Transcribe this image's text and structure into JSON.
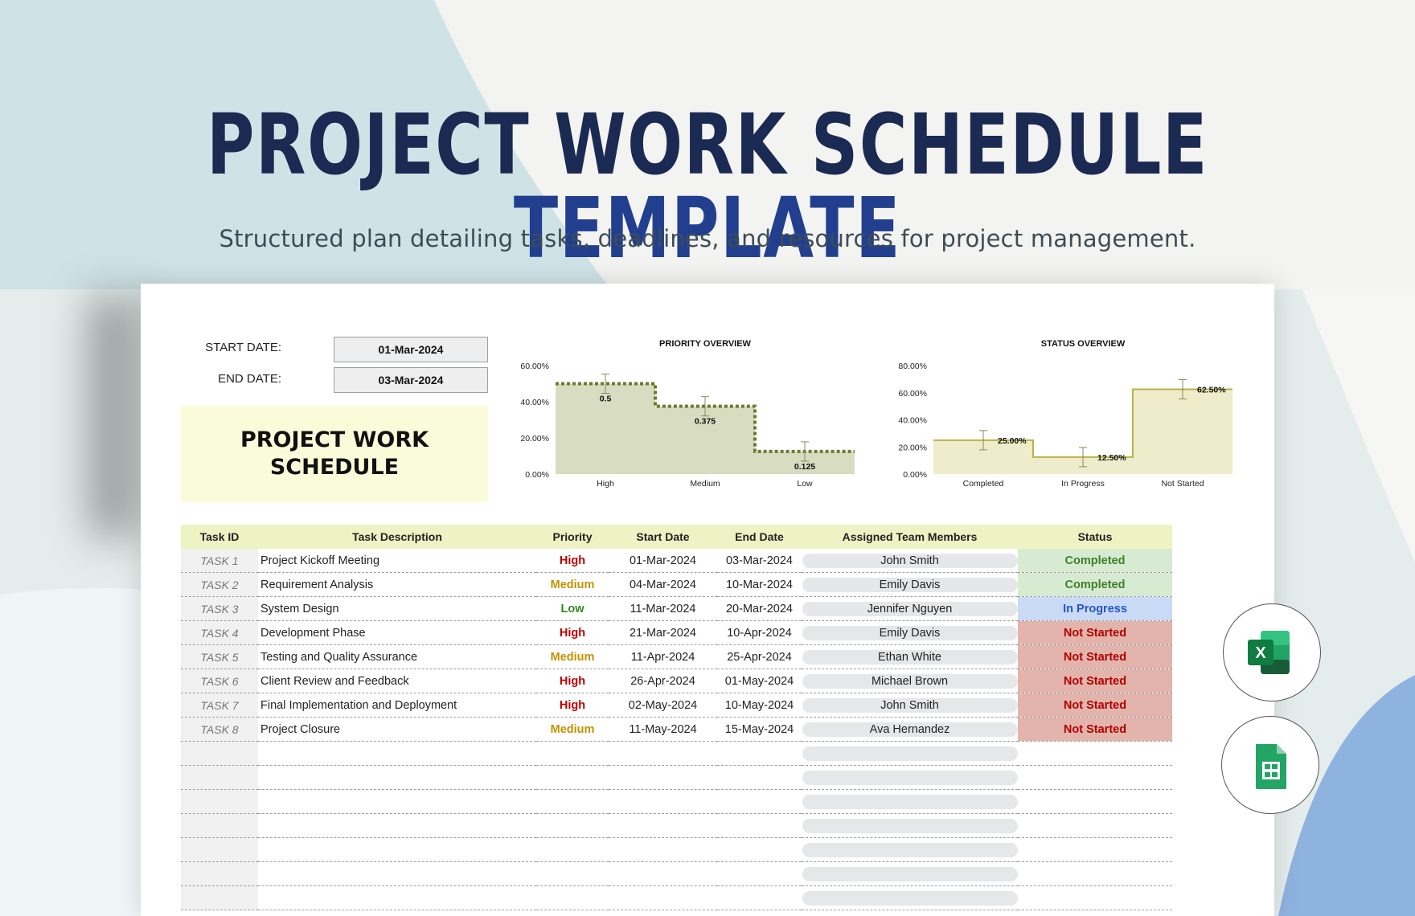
{
  "hero": {
    "title_main": "PROJECT WORK SCHEDULE",
    "title_accent": "TEMPLATE",
    "subtitle": "Structured plan detailing tasks, deadlines, and resources for project management."
  },
  "sheet": {
    "start_label": "START DATE:",
    "start_value": "01-Mar-2024",
    "end_label": "END DATE:",
    "end_value": "03-Mar-2024",
    "title": "PROJECT WORK SCHEDULE"
  },
  "chart_data": [
    {
      "type": "area",
      "title": "PRIORITY OVERVIEW",
      "categories": [
        "High",
        "Medium",
        "Low"
      ],
      "values": [
        0.5,
        0.375,
        0.125
      ],
      "data_labels": [
        "0.5",
        "0.375",
        "0.125"
      ],
      "ylim": [
        0,
        0.6
      ],
      "yticks": [
        "0.00%",
        "20.00%",
        "40.00%",
        "60.00%"
      ],
      "error_bars": true,
      "grid": false,
      "colors": {
        "fill": "#d8dcc1",
        "line": "#6b7a2f"
      }
    },
    {
      "type": "area",
      "title": "STATUS OVERVIEW",
      "categories": [
        "Completed",
        "In Progress",
        "Not Started"
      ],
      "values": [
        0.25,
        0.125,
        0.625
      ],
      "data_labels": [
        "25.00%",
        "12.50%",
        "62.50%"
      ],
      "ylim": [
        0,
        0.8
      ],
      "yticks": [
        "0.00%",
        "20.00%",
        "40.00%",
        "60.00%",
        "80.00%"
      ],
      "error_bars": true,
      "grid": false,
      "colors": {
        "fill": "#efeccb",
        "line": "#b9b24a"
      }
    }
  ],
  "table": {
    "headers": [
      "Task ID",
      "Task Description",
      "Priority",
      "Start Date",
      "End Date",
      "Assigned Team Members",
      "Status"
    ],
    "rows": [
      {
        "id": "TASK 1",
        "desc": "Project Kickoff Meeting",
        "priority": "High",
        "start": "01-Mar-2024",
        "end": "03-Mar-2024",
        "member": "John Smith",
        "status": "Completed"
      },
      {
        "id": "TASK 2",
        "desc": "Requirement Analysis",
        "priority": "Medium",
        "start": "04-Mar-2024",
        "end": "10-Mar-2024",
        "member": "Emily Davis",
        "status": "Completed"
      },
      {
        "id": "TASK 3",
        "desc": "System Design",
        "priority": "Low",
        "start": "11-Mar-2024",
        "end": "20-Mar-2024",
        "member": "Jennifer Nguyen",
        "status": "In Progress"
      },
      {
        "id": "TASK 4",
        "desc": "Development Phase",
        "priority": "High",
        "start": "21-Mar-2024",
        "end": "10-Apr-2024",
        "member": "Emily Davis",
        "status": "Not Started"
      },
      {
        "id": "TASK 5",
        "desc": "Testing and Quality Assurance",
        "priority": "Medium",
        "start": "11-Apr-2024",
        "end": "25-Apr-2024",
        "member": "Ethan White",
        "status": "Not Started"
      },
      {
        "id": "TASK 6",
        "desc": "Client Review and Feedback",
        "priority": "High",
        "start": "26-Apr-2024",
        "end": "01-May-2024",
        "member": "Michael Brown",
        "status": "Not Started"
      },
      {
        "id": "TASK 7",
        "desc": "Final Implementation and Deployment",
        "priority": "High",
        "start": "02-May-2024",
        "end": "10-May-2024",
        "member": "John Smith",
        "status": "Not Started"
      },
      {
        "id": "TASK 8",
        "desc": "Project Closure",
        "priority": "Medium",
        "start": "11-May-2024",
        "end": "15-May-2024",
        "member": "Ava Hernandez",
        "status": "Not Started"
      }
    ],
    "empty_rows": 7
  },
  "apps": [
    {
      "icon": "excel-icon",
      "letter": "X",
      "color": "#1e7145"
    },
    {
      "icon": "google-sheets-icon",
      "color": "#23a566"
    }
  ]
}
